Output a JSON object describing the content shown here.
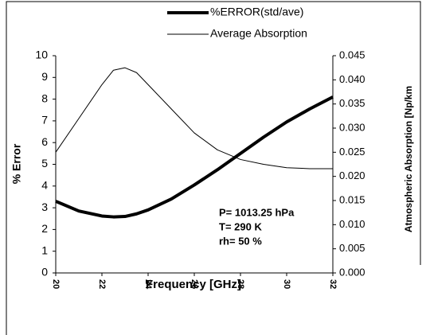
{
  "chart_data": {
    "type": "line",
    "x": [
      20,
      21,
      22,
      22.5,
      23,
      23.5,
      24,
      25,
      26,
      27,
      28,
      29,
      30,
      31,
      32
    ],
    "series": [
      {
        "name": "%ERROR(std/ave)",
        "color": "#000000",
        "width": 4,
        "values": [
          3.3,
          2.85,
          2.62,
          2.58,
          2.6,
          2.72,
          2.9,
          3.4,
          4.05,
          4.75,
          5.5,
          6.25,
          6.95,
          7.55,
          8.1
        ]
      },
      {
        "name": "Average Absorption",
        "color": "#000000",
        "width": 1,
        "axis": "y2",
        "values": [
          0.025,
          0.032,
          0.039,
          0.042,
          0.0425,
          0.0415,
          0.039,
          0.034,
          0.029,
          0.0255,
          0.0235,
          0.0225,
          0.0218,
          0.0216,
          0.0216
        ]
      }
    ],
    "xlabel": "Frequency [GHz]",
    "ylabel": "% Error",
    "y2label": "Atmospheric Absorption  [Np/km",
    "xlim": [
      20,
      32
    ],
    "xticks": [
      20,
      22,
      24,
      26,
      28,
      30,
      32
    ],
    "ylim": [
      0,
      10
    ],
    "yticks": [
      0,
      1,
      2,
      3,
      4,
      5,
      6,
      7,
      8,
      9,
      10
    ],
    "y2lim": [
      0,
      0.045
    ],
    "y2ticks": [
      {
        "value": 0,
        "label": "0.000"
      },
      {
        "value": 0.005,
        "label": "0.005"
      },
      {
        "value": 0.01,
        "label": "0.010"
      },
      {
        "value": 0.015,
        "label": "0.015"
      },
      {
        "value": 0.02,
        "label": "0.020"
      },
      {
        "value": 0.025,
        "label": "0.025"
      },
      {
        "value": 0.03,
        "label": "0.030"
      },
      {
        "value": 0.035,
        "label": "0.035"
      },
      {
        "value": 0.04,
        "label": "0.040"
      },
      {
        "value": 0.045,
        "label": "0.045"
      }
    ],
    "annotations": [
      "P= 1013.25 hPa",
      "T= 290 K",
      "rh= 50 %"
    ],
    "grid": false,
    "legend": "top"
  }
}
